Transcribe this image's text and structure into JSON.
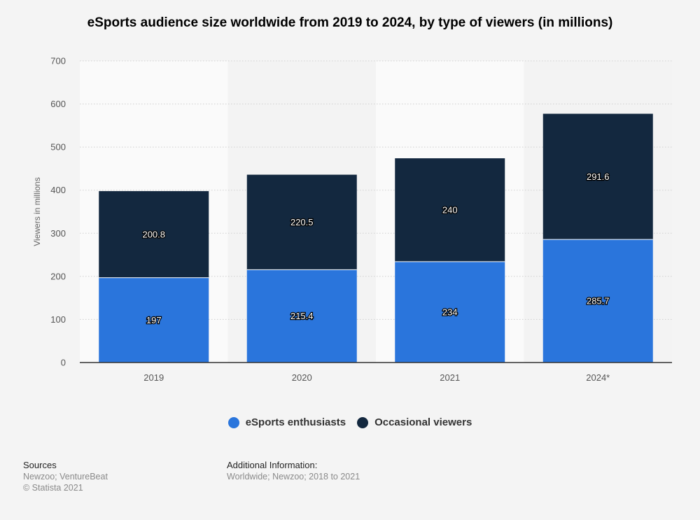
{
  "title": "eSports audience size worldwide from 2019 to 2024, by type of viewers (in millions)",
  "colors": {
    "enthusiasts": "#2a75dc",
    "occasional": "#13283f",
    "band_light": "#fafafa",
    "band_dark": "#f3f3f3"
  },
  "chart_data": {
    "type": "bar",
    "stacked": true,
    "categories": [
      "2019",
      "2020",
      "2021",
      "2024*"
    ],
    "series": [
      {
        "name": "eSports enthusiasts",
        "values": [
          197,
          215.4,
          234,
          285.7
        ]
      },
      {
        "name": "Occasional viewers",
        "values": [
          200.8,
          220.5,
          240,
          291.6
        ]
      }
    ],
    "value_labels": {
      "enthusiasts": [
        "197",
        "215.4",
        "234",
        "285.7"
      ],
      "occasional": [
        "200.8",
        "220.5",
        "240",
        "291.6"
      ]
    },
    "ylabel": "Viewers in millions",
    "xlabel": "",
    "ylim": [
      0,
      700
    ],
    "yticks": [
      "0",
      "100",
      "200",
      "300",
      "400",
      "500",
      "600",
      "700"
    ],
    "grid": true,
    "legend_position": "bottom-center"
  },
  "legend": {
    "enthusiasts": "eSports enthusiasts",
    "occasional": "Occasional viewers"
  },
  "footer": {
    "sources_heading": "Sources",
    "sources_line1": "Newzoo; VentureBeat",
    "sources_line2": "© Statista 2021",
    "additional_heading": "Additional Information:",
    "additional_line1": "Worldwide; Newzoo; 2018 to 2021"
  }
}
